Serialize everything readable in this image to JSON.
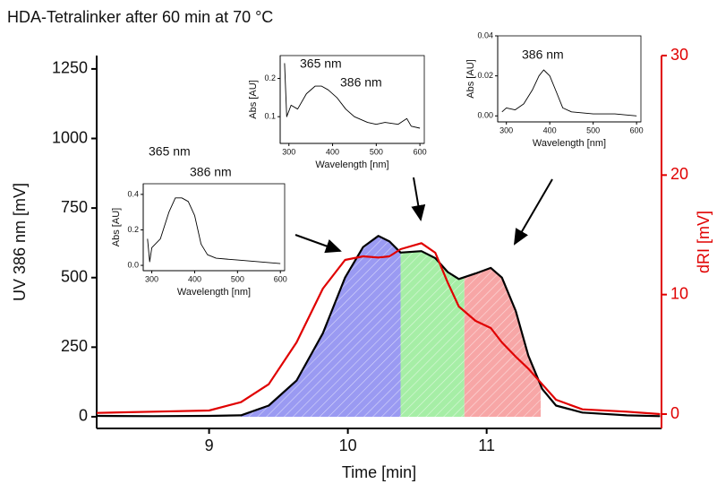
{
  "chart_data": [
    {
      "type": "line",
      "title": "HDA-Tetralinker after 60 min at 70 °C",
      "x_label": "Time [min]",
      "y_label": "UV 386 nm [mV]",
      "y2_label": "dRI [mV]",
      "x": [
        8.19,
        8.6,
        9.0,
        9.23,
        9.43,
        9.63,
        9.82,
        9.98,
        10.11,
        10.22,
        10.3,
        10.38,
        10.53,
        10.63,
        10.72,
        10.8,
        10.92,
        11.03,
        11.11,
        11.21,
        11.3,
        11.4,
        11.5,
        11.69,
        12.01,
        12.25
      ],
      "series": [
        {
          "color": "#000000",
          "values": [
            3,
            2,
            3,
            5,
            40,
            130,
            300,
            500,
            610,
            650,
            630,
            590,
            595,
            570,
            520,
            495,
            515,
            535,
            500,
            380,
            220,
            100,
            40,
            15,
            5,
            2
          ]
        },
        {
          "color": "#e00000",
          "axis": "y2",
          "values": [
            0.1,
            0.2,
            0.3,
            1.0,
            2.5,
            6,
            10.5,
            12.9,
            13.2,
            13.1,
            13.2,
            13.8,
            14.3,
            13.5,
            11,
            9,
            7.8,
            7.2,
            6,
            4.8,
            3.8,
            2.5,
            1.2,
            0.4,
            0.2,
            0.0
          ]
        }
      ],
      "regions": [
        {
          "x": [
            9.23,
            10.38
          ],
          "color": "#9a9af2"
        },
        {
          "x": [
            10.38,
            10.84
          ],
          "color": "#a6eea6"
        },
        {
          "x": [
            10.84,
            11.39
          ],
          "color": "#f7a6a6"
        }
      ],
      "xlim": [
        8.19,
        12.26
      ],
      "xticks": [
        9,
        10,
        11
      ],
      "ylim": [
        -42,
        1298
      ],
      "yticks": [
        0,
        250,
        500,
        750,
        1000,
        1250
      ],
      "y2lim": [
        -1.2,
        30
      ],
      "y2ticks": [
        0,
        10,
        20,
        30
      ],
      "y2color": "#e00000"
    },
    {
      "type": "line",
      "x_label": "Wavelength [nm]",
      "y_label": "Abs [AU]",
      "annotations": [
        "365 nm",
        "386 nm"
      ],
      "x": [
        290,
        295,
        300,
        320,
        340,
        355,
        370,
        385,
        400,
        415,
        430,
        450,
        500,
        550,
        600
      ],
      "series": [
        {
          "color": "#000000",
          "values": [
            0.15,
            0.02,
            0.1,
            0.15,
            0.3,
            0.38,
            0.38,
            0.36,
            0.28,
            0.12,
            0.06,
            0.04,
            0.03,
            0.02,
            0.01
          ]
        }
      ],
      "xlim": [
        280,
        610
      ],
      "xticks": [
        300,
        400,
        500,
        600
      ],
      "ylim": [
        -0.03,
        0.46
      ],
      "yticks": [
        {
          "value": 0.0,
          "label": "0.0"
        },
        0.2,
        0.4
      ]
    },
    {
      "type": "line",
      "x_label": "Wavelength [nm]",
      "y_label": "Abs [AU]",
      "annotations": [
        "365 nm",
        "386 nm"
      ],
      "x": [
        290,
        295,
        305,
        320,
        340,
        360,
        375,
        390,
        410,
        430,
        450,
        480,
        500,
        520,
        550,
        570,
        580,
        600
      ],
      "series": [
        {
          "color": "#000000",
          "values": [
            0.24,
            0.1,
            0.13,
            0.12,
            0.16,
            0.18,
            0.18,
            0.17,
            0.15,
            0.12,
            0.1,
            0.085,
            0.08,
            0.085,
            0.08,
            0.095,
            0.075,
            0.07
          ]
        }
      ],
      "xlim": [
        280,
        610
      ],
      "xticks": [
        300,
        400,
        500,
        600
      ],
      "ylim": [
        0.03,
        0.26
      ],
      "yticks": [
        0.1,
        0.2
      ]
    },
    {
      "type": "line",
      "x_label": "Wavelength [nm]",
      "y_label": "Abs [AU]",
      "annotations": [
        "386 nm"
      ],
      "x": [
        290,
        300,
        320,
        340,
        360,
        375,
        386,
        400,
        415,
        430,
        450,
        500,
        550,
        600
      ],
      "series": [
        {
          "color": "#000000",
          "values": [
            0.002,
            0.004,
            0.003,
            0.006,
            0.013,
            0.02,
            0.023,
            0.02,
            0.012,
            0.004,
            0.002,
            0.001,
            0.001,
            0.0
          ]
        }
      ],
      "xlim": [
        280,
        610
      ],
      "xticks": [
        300,
        400,
        500,
        600
      ],
      "ylim": [
        -0.003,
        0.04
      ],
      "yticks": [
        {
          "value": 0.0,
          "label": "0.00"
        },
        {
          "value": 0.02,
          "label": "0.02"
        },
        {
          "value": 0.04,
          "label": "0.04"
        }
      ]
    }
  ]
}
